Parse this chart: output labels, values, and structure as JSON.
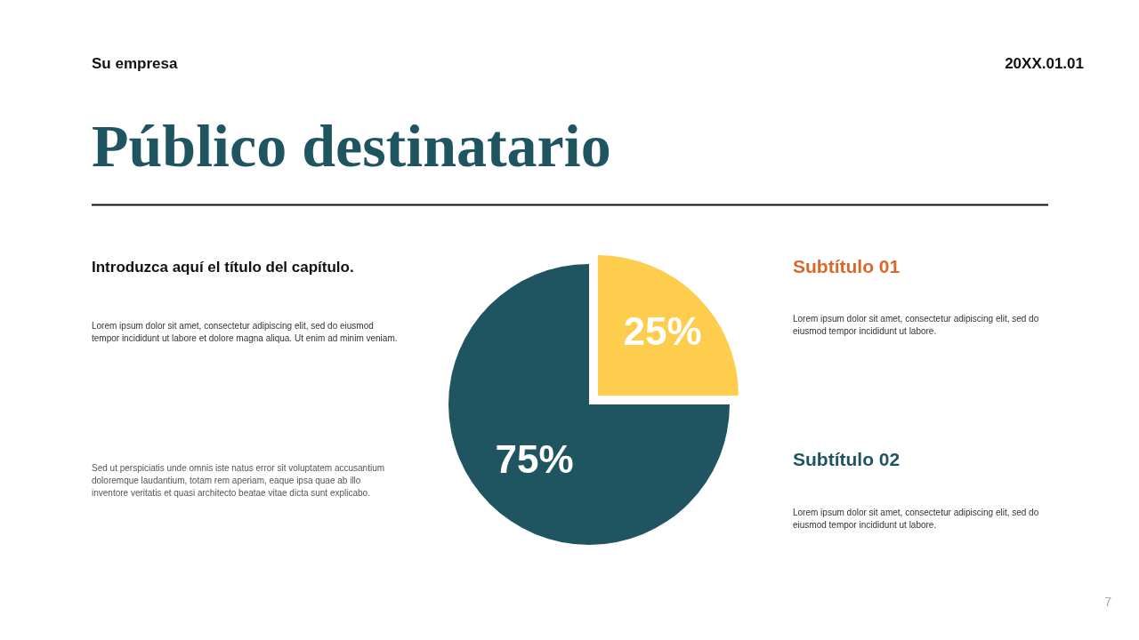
{
  "chart_data": {
    "type": "pie",
    "title": "Público destinatario",
    "categories": [
      null,
      null
    ],
    "values": [
      25,
      75
    ],
    "colors": [
      "#fecd4d",
      "#1f5561"
    ],
    "value_labels": [
      "25%",
      "75%"
    ],
    "annotations": [
      "Su empresa",
      "20XX.01.01",
      "Introduzca aquí el título del capítulo.",
      "Lorem ipsum dolor sit amet, consectetur adipiscing elit, sed do eiusmod tempor incididunt ut labore et dolore magna aliqua. Ut enim ad minim veniam.",
      "Sed ut perspiciatis unde omnis iste natus error sit voluptatem accusantium doloremque laudantium, totam rem aperiam, eaque ipsa quae ab illo inventore veritatis et quasi architecto beatae vitae dicta sunt explicabo.",
      "Subtítulo 01",
      "Lorem ipsum dolor sit amet, consectetur adipiscing elit, sed do eiusmod tempor incididunt ut labore.",
      "Subtítulo 02",
      "Lorem ipsum dolor sit amet, consectetur adipiscing elit, sed do eiusmod tempor incididunt ut labore.",
      "7"
    ]
  }
}
